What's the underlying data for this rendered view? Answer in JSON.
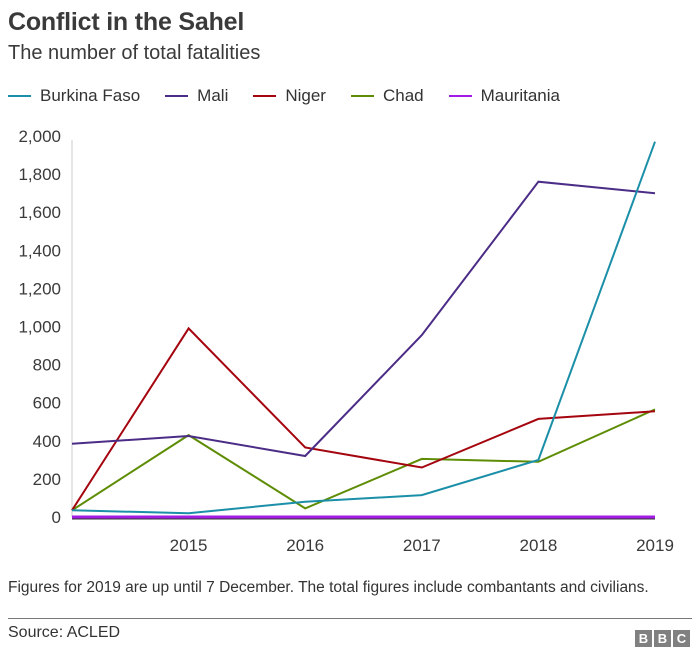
{
  "header": {
    "title": "Conflict in the Sahel",
    "subtitle": "The number of total fatalities"
  },
  "footer": {
    "note": "Figures for 2019 are up until 7 December. The total figures include combantants and civilians.",
    "source": "Source: ACLED",
    "logo_letters": [
      "B",
      "B",
      "C"
    ]
  },
  "chart_data": {
    "type": "line",
    "title": "Conflict in the Sahel",
    "subtitle": "The number of total fatalities",
    "xlabel": "",
    "ylabel": "",
    "x": [
      2014,
      2015,
      2016,
      2017,
      2018,
      2019
    ],
    "x_tick_labels": [
      "2015",
      "2016",
      "2017",
      "2018",
      "2019"
    ],
    "x_ticks": [
      2015,
      2016,
      2017,
      2018,
      2019
    ],
    "xlim": [
      2014,
      2019
    ],
    "ylim": [
      0,
      2000
    ],
    "y_ticks": [
      0,
      200,
      400,
      600,
      800,
      1000,
      1200,
      1400,
      1600,
      1800,
      2000
    ],
    "y_tick_labels": [
      "0",
      "200",
      "400",
      "600",
      "800",
      "1,000",
      "1,200",
      "1,400",
      "1,600",
      "1,800",
      "2,000"
    ],
    "grid": false,
    "legend_position": "top",
    "series": [
      {
        "name": "Burkina Faso",
        "color": "#1b8fa8",
        "values": [
          35,
          20,
          80,
          115,
          300,
          1970
        ]
      },
      {
        "name": "Mali",
        "color": "#4b2c86",
        "values": [
          385,
          425,
          320,
          955,
          1760,
          1700
        ]
      },
      {
        "name": "Niger",
        "color": "#a4050f",
        "values": [
          35,
          990,
          365,
          260,
          515,
          555
        ]
      },
      {
        "name": "Chad",
        "color": "#5e8d05",
        "values": [
          35,
          430,
          45,
          305,
          290,
          565
        ]
      },
      {
        "name": "Mauritania",
        "color": "#a21ce3",
        "values": [
          0,
          0,
          0,
          0,
          0,
          0
        ]
      }
    ]
  }
}
